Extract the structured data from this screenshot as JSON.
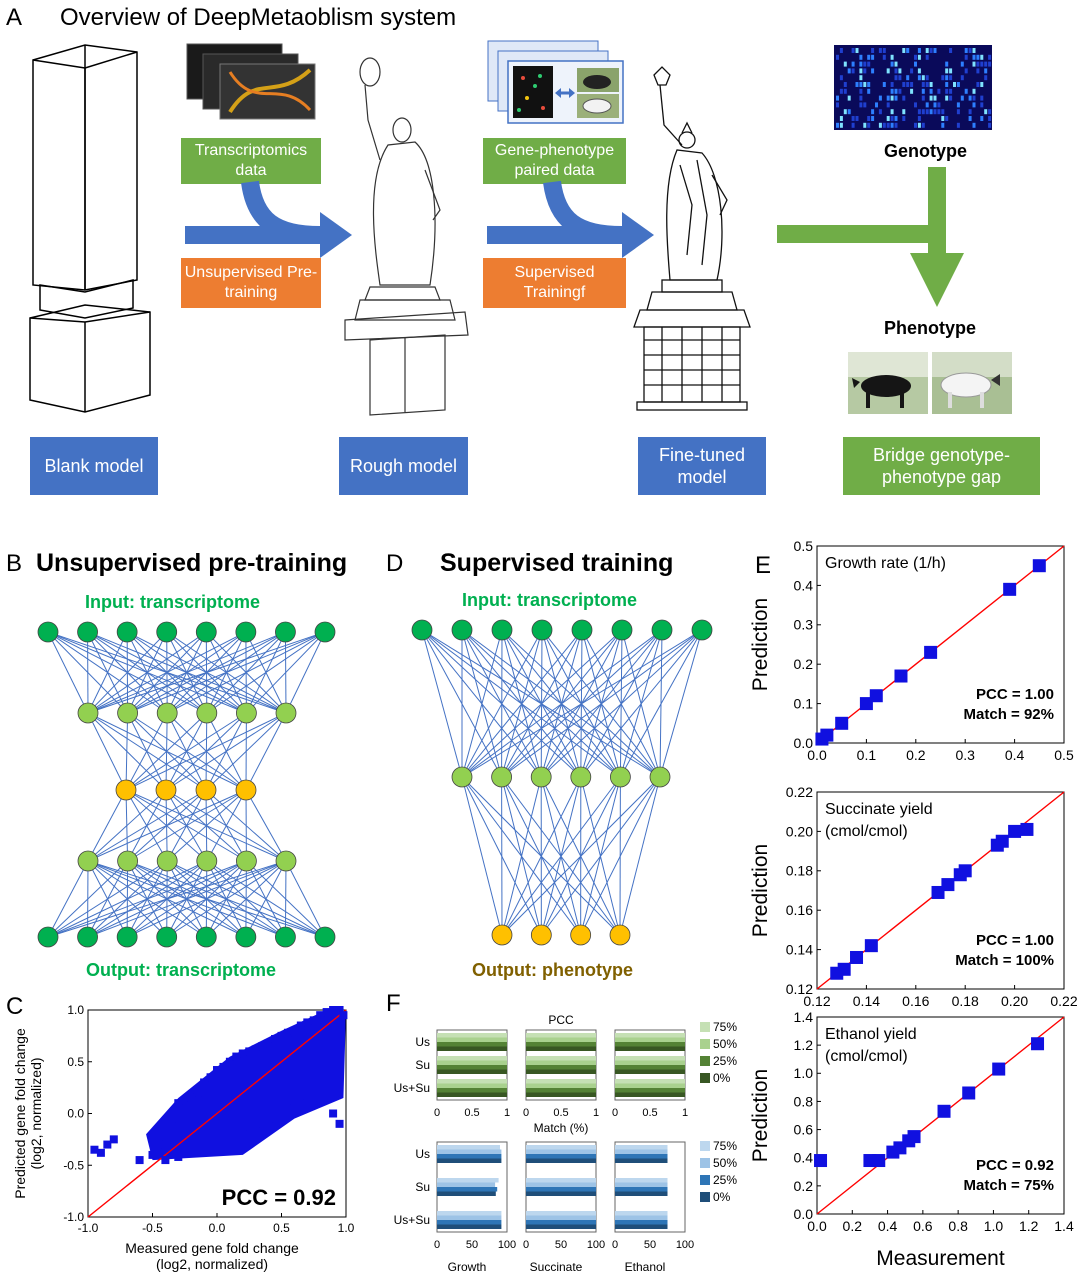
{
  "panel_a": {
    "letter": "A",
    "title": "Overview of DeepMetaoblism system",
    "transcriptomics_box": "Transcriptomics data",
    "unsupervised_box": "Unsupervised Pre-training",
    "gene_phenotype_box": "Gene-phenotype paired data",
    "supervised_box": "Supervised Trainingf",
    "genotype_label": "Genotype",
    "phenotype_label": "Phenotype",
    "blank_model": "Blank model",
    "rough_model": "Rough model",
    "finetuned_model": "Fine-tuned model",
    "bridge_gap": "Bridge genotype-phenotype gap",
    "colors": {
      "green": "#70ad47",
      "orange": "#ed7d31",
      "blue": "#4472c4",
      "arrow": "#4472c4"
    }
  },
  "panel_b": {
    "letter": "B",
    "title": "Unsupervised pre-training",
    "input_label": "Input: transcriptome",
    "output_label": "Output: transcriptome",
    "layers": [
      8,
      6,
      4,
      6,
      8
    ]
  },
  "panel_d": {
    "letter": "D",
    "title": "Supervised training",
    "input_label": "Input: transcriptome",
    "output_label": "Output: phenotype",
    "layers": [
      8,
      6,
      4
    ]
  },
  "panel_c": {
    "letter": "C",
    "chart_data": {
      "type": "scatter",
      "xlabel": "Measured gene fold change (log2, normalized)",
      "ylabel": "Predicted gene fold change (log2, normalized)",
      "xlim": [
        -1.0,
        1.0
      ],
      "ylim": [
        -1.0,
        1.0
      ],
      "x_ticks": [
        "-1.0",
        "-0.5",
        "0.0",
        "0.5",
        "1.0"
      ],
      "y_ticks": [
        "-1.0",
        "-0.5",
        "0.0",
        "0.5",
        "1.0"
      ],
      "annotation": "PCC = 0.92",
      "points": [
        [
          -0.95,
          -0.35
        ],
        [
          -0.9,
          -0.38
        ],
        [
          -0.85,
          -0.3
        ],
        [
          -0.8,
          -0.25
        ],
        [
          -0.6,
          -0.45
        ],
        [
          -0.5,
          -0.4
        ],
        [
          -0.45,
          -0.25
        ],
        [
          -0.4,
          -0.3
        ],
        [
          -0.35,
          -0.05
        ],
        [
          -0.3,
          0.1
        ],
        [
          -0.25,
          0.05
        ],
        [
          -0.2,
          0.15
        ],
        [
          -0.15,
          0.2
        ],
        [
          -0.1,
          0.3
        ],
        [
          -0.05,
          0.35
        ],
        [
          0.0,
          0.42
        ],
        [
          0.05,
          0.45
        ],
        [
          0.1,
          0.5
        ],
        [
          0.15,
          0.55
        ],
        [
          0.2,
          0.58
        ],
        [
          0.25,
          0.6
        ],
        [
          0.3,
          0.62
        ],
        [
          0.35,
          0.65
        ],
        [
          0.4,
          0.68
        ],
        [
          0.45,
          0.72
        ],
        [
          0.5,
          0.75
        ],
        [
          0.55,
          0.78
        ],
        [
          0.6,
          0.8
        ],
        [
          0.65,
          0.85
        ],
        [
          0.7,
          0.88
        ],
        [
          0.75,
          0.9
        ],
        [
          0.8,
          0.95
        ],
        [
          0.85,
          0.98
        ],
        [
          0.9,
          1.0
        ],
        [
          0.95,
          1.0
        ],
        [
          0.98,
          0.95
        ],
        [
          -0.4,
          -0.45
        ],
        [
          -0.3,
          -0.42
        ],
        [
          -0.2,
          -0.38
        ],
        [
          -0.1,
          -0.35
        ],
        [
          0.0,
          -0.3
        ],
        [
          0.1,
          -0.25
        ],
        [
          0.2,
          -0.2
        ],
        [
          0.3,
          -0.1
        ],
        [
          0.4,
          -0.05
        ],
        [
          0.5,
          0.0
        ],
        [
          0.6,
          0.05
        ],
        [
          0.7,
          0.1
        ],
        [
          0.8,
          0.15
        ],
        [
          0.9,
          0.0
        ],
        [
          0.95,
          -0.1
        ]
      ],
      "reference_line": "y = x"
    }
  },
  "panel_e": {
    "letter": "E",
    "ylabel": "Prediction",
    "xlabel": "Measurement",
    "charts": [
      {
        "title": "Growth rate (1/h)",
        "title2": "",
        "xlim": [
          0.0,
          0.5
        ],
        "ylim": [
          0.0,
          0.5
        ],
        "x_ticks": [
          "0.0",
          "0.1",
          "0.2",
          "0.3",
          "0.4",
          "0.5"
        ],
        "y_ticks": [
          "0.0",
          "0.1",
          "0.2",
          "0.3",
          "0.4",
          "0.5"
        ],
        "pcc": "PCC = 1.00",
        "match": "Match = 92%",
        "points": [
          [
            0.01,
            0.01
          ],
          [
            0.02,
            0.02
          ],
          [
            0.05,
            0.05
          ],
          [
            0.1,
            0.1
          ],
          [
            0.12,
            0.12
          ],
          [
            0.17,
            0.17
          ],
          [
            0.23,
            0.23
          ],
          [
            0.39,
            0.39
          ],
          [
            0.45,
            0.45
          ]
        ]
      },
      {
        "title": "Succinate yield",
        "title2": "(cmol/cmol)",
        "xlim": [
          0.12,
          0.22
        ],
        "ylim": [
          0.12,
          0.22
        ],
        "x_ticks": [
          "0.12",
          "0.14",
          "0.16",
          "0.18",
          "0.20",
          "0.22"
        ],
        "y_ticks": [
          "0.12",
          "0.14",
          "0.16",
          "0.18",
          "0.20",
          "0.22"
        ],
        "pcc": "PCC = 1.00",
        "match": "Match = 100%",
        "points": [
          [
            0.128,
            0.128
          ],
          [
            0.131,
            0.13
          ],
          [
            0.136,
            0.136
          ],
          [
            0.142,
            0.142
          ],
          [
            0.169,
            0.169
          ],
          [
            0.173,
            0.173
          ],
          [
            0.178,
            0.178
          ],
          [
            0.18,
            0.18
          ],
          [
            0.193,
            0.193
          ],
          [
            0.195,
            0.195
          ],
          [
            0.2,
            0.2
          ],
          [
            0.205,
            0.201
          ]
        ]
      },
      {
        "title": "Ethanol yield",
        "title2": "(cmol/cmol)",
        "xlim": [
          0.0,
          1.4
        ],
        "ylim": [
          0.0,
          1.4
        ],
        "x_ticks": [
          "0.0",
          "0.2",
          "0.4",
          "0.6",
          "0.8",
          "1.0",
          "1.2",
          "1.4"
        ],
        "y_ticks": [
          "0.0",
          "0.2",
          "0.4",
          "0.6",
          "0.8",
          "1.0",
          "1.2",
          "1.4"
        ],
        "pcc": "PCC = 0.92",
        "match": "Match = 75%",
        "points": [
          [
            0.02,
            0.38
          ],
          [
            0.3,
            0.38
          ],
          [
            0.35,
            0.38
          ],
          [
            0.43,
            0.44
          ],
          [
            0.47,
            0.47
          ],
          [
            0.52,
            0.52
          ],
          [
            0.55,
            0.55
          ],
          [
            0.72,
            0.73
          ],
          [
            0.86,
            0.86
          ],
          [
            1.03,
            1.03
          ],
          [
            1.25,
            1.21
          ]
        ]
      }
    ]
  },
  "panel_f": {
    "letter": "F",
    "pcc_title": "PCC",
    "match_label": "Match (%)",
    "rows": [
      "Us",
      "Su",
      "Us+Su"
    ],
    "top_ticks": [
      "0",
      "0.5",
      "1"
    ],
    "bottom_ticks": [
      "0",
      "50",
      "100"
    ],
    "bottom_groups": [
      "Growth",
      "Succinate",
      "Ethanol"
    ],
    "legend": [
      "75%",
      "50%",
      "25%",
      "0%"
    ],
    "green_colors": [
      "#c5e0b4",
      "#a9d18e",
      "#548235",
      "#385723"
    ],
    "blue_colors": [
      "#bdd7ee",
      "#9dc3e6",
      "#2e75b6",
      "#1f4e79"
    ],
    "pcc_values": [
      [
        [
          1,
          1,
          1,
          1
        ],
        [
          1,
          1,
          1,
          1
        ],
        [
          1,
          1,
          1,
          1
        ]
      ],
      [
        [
          1,
          1,
          1,
          1
        ],
        [
          1,
          1,
          1,
          1
        ],
        [
          1,
          1,
          1,
          1
        ]
      ],
      [
        [
          1,
          1,
          1,
          1
        ],
        [
          1,
          1,
          1,
          1
        ],
        [
          1,
          1,
          1,
          1
        ]
      ]
    ],
    "match_values": [
      [
        [
          92,
          92,
          92,
          90
        ],
        [
          84,
          86,
          83,
          88
        ],
        [
          92,
          92,
          92,
          92
        ]
      ],
      [
        [
          100,
          100,
          100,
          100
        ],
        [
          100,
          100,
          100,
          100
        ],
        [
          100,
          100,
          100,
          100
        ]
      ],
      [
        [
          75,
          75,
          75,
          75
        ],
        [
          75,
          75,
          75,
          75
        ],
        [
          75,
          75,
          75,
          75
        ]
      ]
    ]
  }
}
